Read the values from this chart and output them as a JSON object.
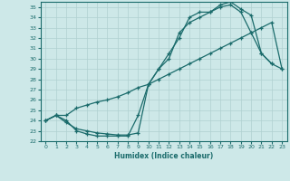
{
  "xlabel": "Humidex (Indice chaleur)",
  "bg_color": "#cde8e8",
  "grid_color": "#b0d0d0",
  "line_color": "#1a6b6b",
  "xlim": [
    -0.5,
    23.5
  ],
  "ylim": [
    22,
    35.5
  ],
  "xticks": [
    0,
    1,
    2,
    3,
    4,
    5,
    6,
    7,
    8,
    9,
    10,
    11,
    12,
    13,
    14,
    15,
    16,
    17,
    18,
    19,
    20,
    21,
    22,
    23
  ],
  "yticks": [
    22,
    23,
    24,
    25,
    26,
    27,
    28,
    29,
    30,
    31,
    32,
    33,
    34,
    35
  ],
  "line1_x": [
    0,
    1,
    2,
    3,
    4,
    5,
    6,
    7,
    8,
    9,
    10,
    11,
    12,
    13,
    14,
    15,
    16,
    17,
    18,
    19,
    20,
    21,
    22,
    23
  ],
  "line1_y": [
    24.0,
    24.5,
    23.8,
    23.2,
    23.0,
    22.8,
    22.7,
    22.6,
    22.6,
    22.8,
    27.5,
    29.0,
    30.5,
    32.0,
    34.0,
    34.5,
    34.5,
    35.0,
    35.2,
    34.5,
    32.5,
    30.5,
    29.5,
    29.0
  ],
  "line2_x": [
    0,
    1,
    2,
    3,
    4,
    5,
    6,
    7,
    8,
    9,
    10,
    11,
    12,
    13,
    14,
    15,
    16,
    17,
    18,
    19,
    20,
    21,
    22
  ],
  "line2_y": [
    24.0,
    24.5,
    24.0,
    23.0,
    22.7,
    22.5,
    22.5,
    22.5,
    22.5,
    24.5,
    27.5,
    29.0,
    30.0,
    32.5,
    33.5,
    34.0,
    34.5,
    35.2,
    35.5,
    34.8,
    34.2,
    30.5,
    29.5
  ],
  "line3_x": [
    0,
    1,
    2,
    3,
    4,
    5,
    6,
    7,
    8,
    9,
    10,
    11,
    12,
    13,
    14,
    15,
    16,
    17,
    18,
    19,
    20,
    21,
    22,
    23
  ],
  "line3_y": [
    24.0,
    24.5,
    24.5,
    25.2,
    25.5,
    25.8,
    26.0,
    26.3,
    26.7,
    27.2,
    27.5,
    28.0,
    28.5,
    29.0,
    29.5,
    30.0,
    30.5,
    31.0,
    31.5,
    32.0,
    32.5,
    33.0,
    33.5,
    29.0
  ]
}
